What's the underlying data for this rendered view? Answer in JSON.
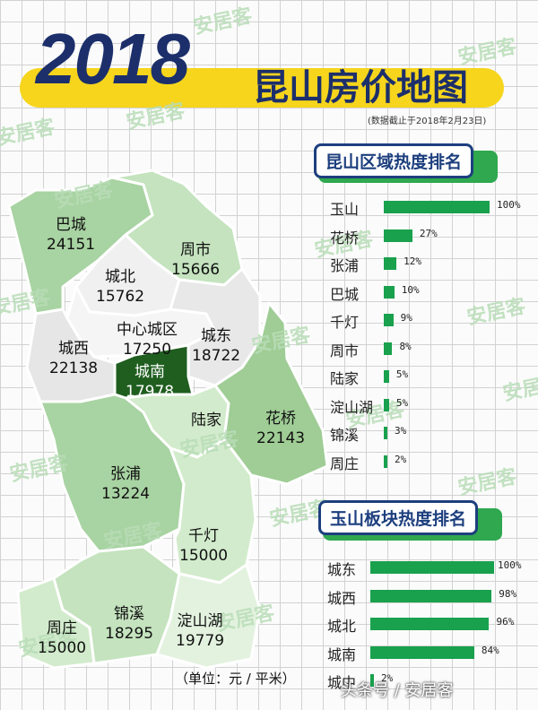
{
  "header": {
    "year": "2018",
    "title": "昆山房价地图",
    "note": "(数据截止于2018年2月23日)"
  },
  "watermark_text": "安居客",
  "colors": {
    "title_navy": "#1c2f6b",
    "banner_yellow": "#f6d51c",
    "bar_green": "#19a14d",
    "dark_green": "#1f5e1f"
  },
  "map": {
    "districts": [
      {
        "name": "巴城",
        "price": "24151"
      },
      {
        "name": "周市",
        "price": "15666"
      },
      {
        "name": "城北",
        "price": "15762"
      },
      {
        "name": "中心城区",
        "price": "17250"
      },
      {
        "name": "城东",
        "price": "18722"
      },
      {
        "name": "城西",
        "price": "22138"
      },
      {
        "name": "城南",
        "price": "17978"
      },
      {
        "name": "陆家",
        "price": ""
      },
      {
        "name": "花桥",
        "price": "22143"
      },
      {
        "name": "张浦",
        "price": "13224"
      },
      {
        "name": "千灯",
        "price": "15000"
      },
      {
        "name": "周庄",
        "price": "15000"
      },
      {
        "name": "锦溪",
        "price": "18295"
      },
      {
        "name": "淀山湖",
        "price": "19779"
      }
    ],
    "unit": "（单位：元 / 平米）"
  },
  "ranking_regions": {
    "title": "昆山区域热度排名",
    "items": [
      {
        "name": "玉山",
        "pct": "100%",
        "value": 100
      },
      {
        "name": "花桥",
        "pct": "27%",
        "value": 27
      },
      {
        "name": "张浦",
        "pct": "12%",
        "value": 12
      },
      {
        "name": "巴城",
        "pct": "10%",
        "value": 10
      },
      {
        "name": "千灯",
        "pct": "9%",
        "value": 9
      },
      {
        "name": "周市",
        "pct": "8%",
        "value": 8
      },
      {
        "name": "陆家",
        "pct": "5%",
        "value": 5
      },
      {
        "name": "淀山湖",
        "pct": "5%",
        "value": 5
      },
      {
        "name": "锦溪",
        "pct": "3%",
        "value": 3
      },
      {
        "name": "周庄",
        "pct": "2%",
        "value": 2
      }
    ]
  },
  "ranking_blocks": {
    "title": "玉山板块热度排名",
    "items": [
      {
        "name": "城东",
        "pct": "100%",
        "value": 100
      },
      {
        "name": "城西",
        "pct": "98%",
        "value": 98
      },
      {
        "name": "城北",
        "pct": "96%",
        "value": 96
      },
      {
        "name": "城南",
        "pct": "84%",
        "value": 84
      },
      {
        "name": "城中",
        "pct": "2%",
        "value": 2
      }
    ]
  },
  "credit": "头条号 / 安居客"
}
